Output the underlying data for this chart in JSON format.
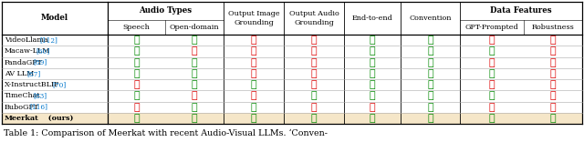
{
  "models": [
    "VideoLlama",
    "Macaw-LLM",
    "PandaGPT",
    "AV LLM",
    "X-InstructBLIP",
    "TimeChat",
    "BuboGPT",
    "Meerkat (ours)"
  ],
  "model_refs": [
    "[112]",
    "[60]",
    "[89]",
    "[87]",
    "[70]",
    "[83]",
    "[116]",
    ""
  ],
  "data": [
    [
      1,
      1,
      0,
      0,
      1,
      1,
      0,
      0
    ],
    [
      1,
      0,
      0,
      0,
      1,
      1,
      1,
      0
    ],
    [
      1,
      1,
      0,
      0,
      1,
      1,
      0,
      0
    ],
    [
      1,
      1,
      0,
      0,
      1,
      1,
      1,
      0
    ],
    [
      0,
      1,
      1,
      0,
      1,
      1,
      0,
      0
    ],
    [
      1,
      0,
      0,
      1,
      1,
      1,
      1,
      0
    ],
    [
      0,
      1,
      1,
      0,
      0,
      1,
      0,
      0
    ],
    [
      1,
      1,
      1,
      1,
      1,
      1,
      1,
      1
    ]
  ],
  "check_color": "#008800",
  "cross_color": "#dd0000",
  "meerkat_bg": "#f5e6c8",
  "caption": "Table 1: Comparison of Meerkat with recent Audio-Visual LLMs. ‘Conven-",
  "figsize": [
    6.4,
    1.56
  ],
  "dpi": 100
}
